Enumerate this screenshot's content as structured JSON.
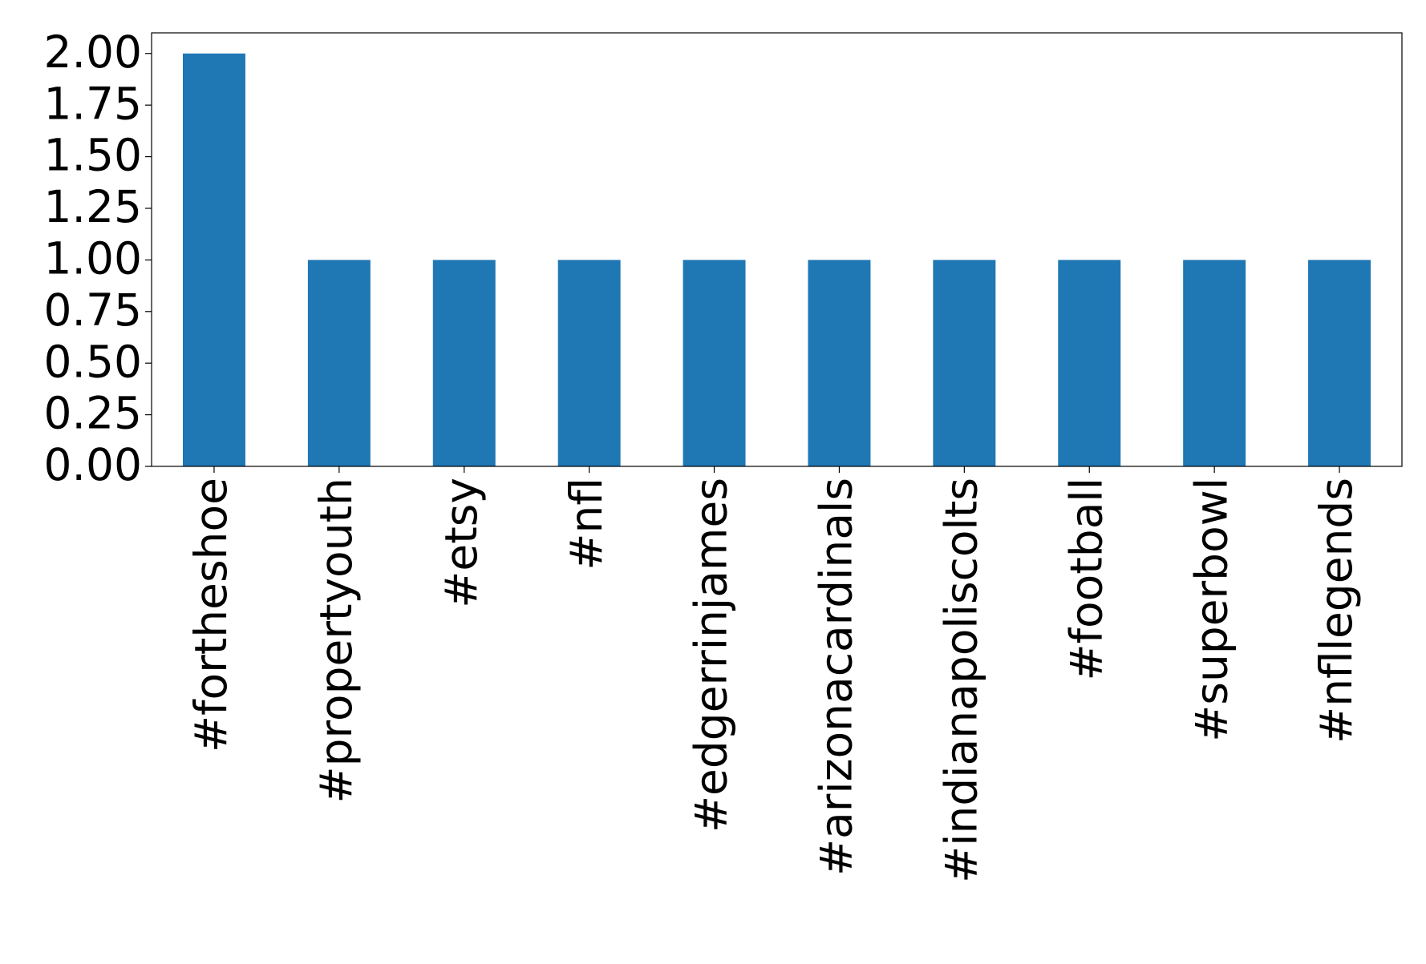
{
  "chart_data": {
    "type": "bar",
    "categories": [
      "#fortheshoe",
      "#propertyouth",
      "#etsy",
      "#nfl",
      "#edgerrinjames",
      "#arizonacardinals",
      "#indianapoliscolts",
      "#football",
      "#superbowl",
      "#nfllegends"
    ],
    "values": [
      2,
      1,
      1,
      1,
      1,
      1,
      1,
      1,
      1,
      1
    ],
    "color": "#1f77b4",
    "ylim": [
      0,
      2.1
    ],
    "yticks": [
      {
        "value": 0,
        "label": "0.00"
      },
      {
        "value": 0.25,
        "label": "0.25"
      },
      {
        "value": 0.5,
        "label": "0.50"
      },
      {
        "value": 0.75,
        "label": "0.75"
      },
      {
        "value": 1,
        "label": "1.00"
      },
      {
        "value": 1.25,
        "label": "1.25"
      },
      {
        "value": 1.5,
        "label": "1.50"
      },
      {
        "value": 1.75,
        "label": "1.75"
      },
      {
        "value": 2,
        "label": "2.00"
      }
    ],
    "grid": false
  }
}
